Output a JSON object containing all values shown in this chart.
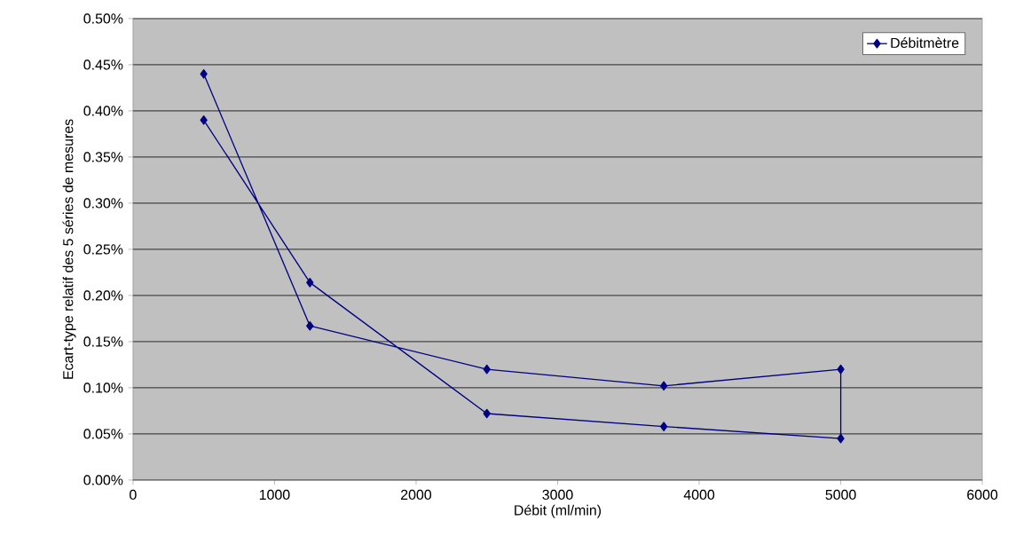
{
  "chart_data": {
    "type": "line",
    "xlabel": "Débit (ml/min)",
    "ylabel": "Ecart-type relatif des 5 séries de mesures",
    "series": [
      {
        "name": "Débitmètre",
        "color": "#000080",
        "x": [
          500,
          1250,
          2500,
          3750,
          5000,
          5000,
          3750,
          2500,
          1250,
          500
        ],
        "values": [
          0.39,
          0.214,
          0.072,
          0.058,
          0.045,
          0.12,
          0.102,
          0.12,
          0.167,
          0.44
        ]
      }
    ],
    "xlim": [
      0,
      6000
    ],
    "xticks": [
      0,
      1000,
      2000,
      3000,
      4000,
      5000,
      6000
    ],
    "ylim": [
      0,
      0.5
    ],
    "yticks": [
      {
        "value": 0,
        "label": "0.00%"
      },
      {
        "value": 0.05,
        "label": "0.05%"
      },
      {
        "value": 0.1,
        "label": "0.10%"
      },
      {
        "value": 0.15,
        "label": "0.15%"
      },
      {
        "value": 0.2,
        "label": "0.20%"
      },
      {
        "value": 0.25,
        "label": "0.25%"
      },
      {
        "value": 0.3,
        "label": "0.30%"
      },
      {
        "value": 0.35,
        "label": "0.35%"
      },
      {
        "value": 0.4,
        "label": "0.40%"
      },
      {
        "value": 0.45,
        "label": "0.45%"
      },
      {
        "value": 0.5,
        "label": "0.50%"
      }
    ],
    "grid": "y",
    "legend": "top right",
    "marker": "diamond",
    "line_style": "solid"
  }
}
